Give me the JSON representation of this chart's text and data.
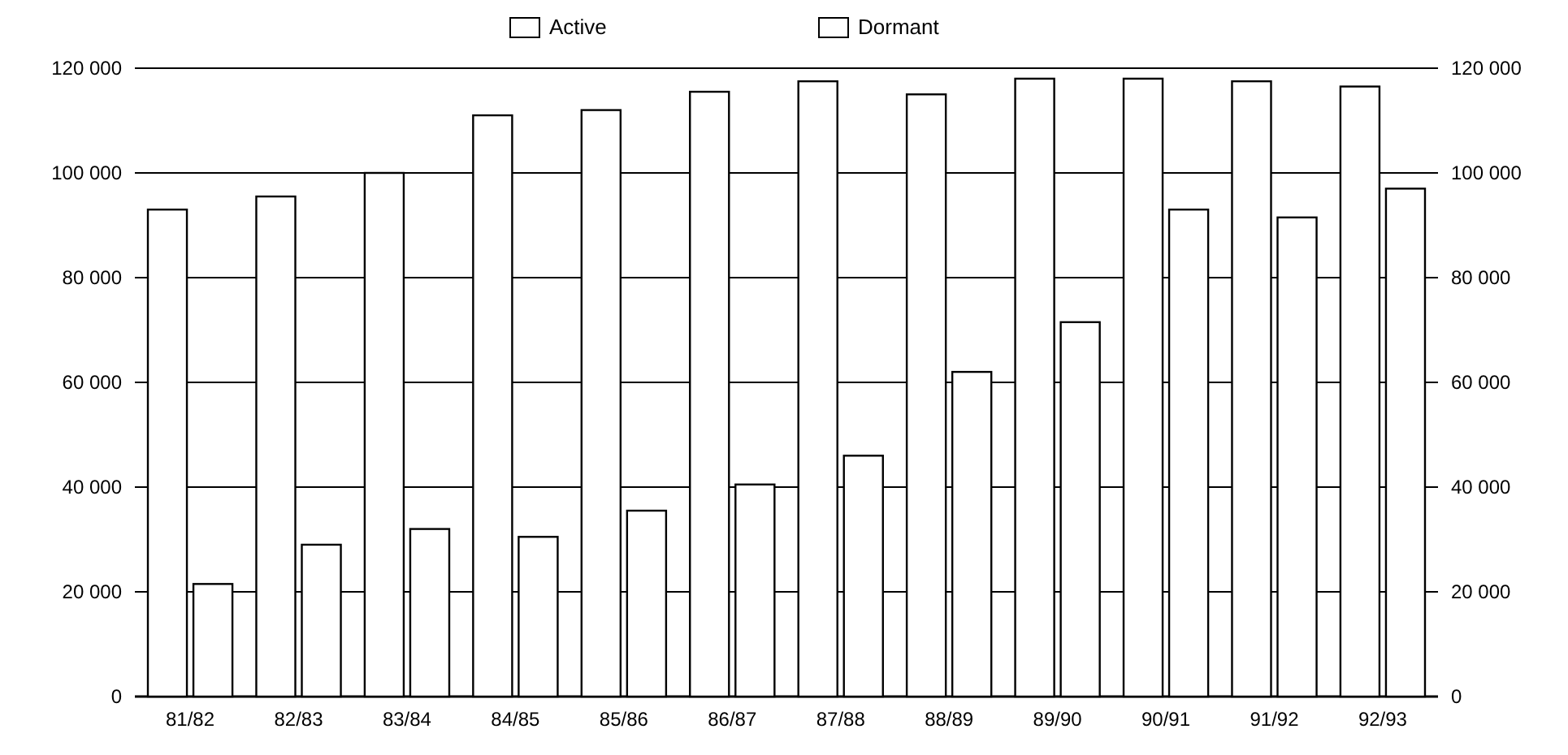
{
  "chart_data": {
    "type": "bar",
    "categories": [
      "81/82",
      "82/83",
      "83/84",
      "84/85",
      "85/86",
      "86/87",
      "87/88",
      "88/89",
      "89/90",
      "90/91",
      "91/92",
      "92/93"
    ],
    "series": [
      {
        "name": "Active",
        "color": "#ffffff",
        "values": [
          93000,
          95500,
          100000,
          111000,
          112000,
          115500,
          117500,
          115000,
          118000,
          118000,
          117500,
          116500
        ]
      },
      {
        "name": "Dormant",
        "color": "#ffffff",
        "values": [
          21500,
          29000,
          32000,
          30500,
          35500,
          40500,
          46000,
          62000,
          71500,
          93000,
          91500,
          97000
        ]
      }
    ],
    "ylim": [
      0,
      120000
    ],
    "yticks": [
      {
        "value": 0,
        "label": "0"
      },
      {
        "value": 20000,
        "label": "20 000"
      },
      {
        "value": 40000,
        "label": "40 000"
      },
      {
        "value": 60000,
        "label": "60 000"
      },
      {
        "value": 80000,
        "label": "80 000"
      },
      {
        "value": 100000,
        "label": "100 000"
      },
      {
        "value": 120000,
        "label": "120 000"
      }
    ],
    "y2lim": [
      0,
      120000
    ],
    "y2ticks": [
      {
        "value": 0,
        "label": "0"
      },
      {
        "value": 20000,
        "label": "20 000"
      },
      {
        "value": 40000,
        "label": "40 000"
      },
      {
        "value": 60000,
        "label": "60 000"
      },
      {
        "value": 80000,
        "label": "80 000"
      },
      {
        "value": 100000,
        "label": "100 000"
      },
      {
        "value": 120000,
        "label": "120 000"
      }
    ],
    "grid": "y",
    "legend": "top"
  }
}
